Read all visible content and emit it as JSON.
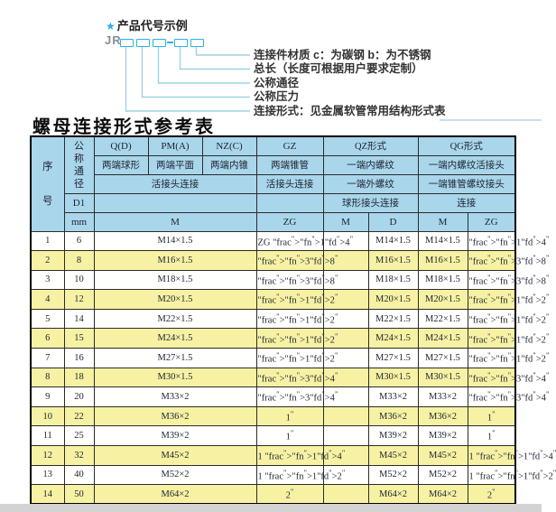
{
  "page": {
    "title": "螺母连接形式参考表"
  },
  "diagram": {
    "star": "★",
    "example_title": "产品代号示例",
    "code_prefix": "JR",
    "labels": [
      "连接件材质  c：为碳钢  b：为不锈钢",
      "总长（长度可根据用户要求定制）",
      "公称通径",
      "公称压力",
      "连接形式：见金属软管常用结构形式表"
    ]
  },
  "table": {
    "header": {
      "seq": "序号",
      "dn": "公称通径",
      "d1": "D1",
      "mm": "mm",
      "q": "Q(D)",
      "pm": "PM(A)",
      "nz": "NZ(C)",
      "gz": "GZ",
      "qz": "QZ形式",
      "qg": "QG形式",
      "q_desc": "两端球形",
      "pm_desc": "两端平面",
      "nz_desc": "两端内锥",
      "gz_desc": "两端锥管",
      "qz_desc1": "一端内螺纹",
      "qg_desc1": "一端内螺纹活接头",
      "live_joint": "活接头连接",
      "gz_joint": "活接头连接",
      "qz_desc2": "一端外螺纹",
      "qg_desc2": "一端锥管螺纹接头",
      "qz_conn": "球形接头连接",
      "qg_conn": "连接",
      "m": "M",
      "zg": "ZG",
      "qz_m": "M",
      "qz_d": "D",
      "qg_m": "M",
      "qg_zg": "ZG"
    },
    "rows": [
      {
        "no": "1",
        "dn": "6",
        "m": "M14×1.5",
        "zg": "ZG 1/4\"",
        "qz_m": "",
        "qz_d": "M14×1.5",
        "qg_m": "M14×1.5",
        "qg_zg": "1/4\""
      },
      {
        "no": "2",
        "dn": "8",
        "m": "M16×1.5",
        "zg": "3/8\"",
        "qz_m": "",
        "qz_d": "M16×1.5",
        "qg_m": "M16×1.5",
        "qg_zg": "3/8\""
      },
      {
        "no": "3",
        "dn": "10",
        "m": "M18×1.5",
        "zg": "3/8\"",
        "qz_m": "",
        "qz_d": "M18×1.5",
        "qg_m": "M18×1.5",
        "qg_zg": "3/8\""
      },
      {
        "no": "4",
        "dn": "12",
        "m": "M20×1.5",
        "zg": "1/2\"",
        "qz_m": "",
        "qz_d": "M20×1.5",
        "qg_m": "M20×1.5",
        "qg_zg": "1/2\""
      },
      {
        "no": "5",
        "dn": "14",
        "m": "M22×1.5",
        "zg": "1/2\"",
        "qz_m": "",
        "qz_d": "M22×1.5",
        "qg_m": "M22×1.5",
        "qg_zg": "1/2\""
      },
      {
        "no": "6",
        "dn": "15",
        "m": "M24×1.5",
        "zg": "1/2\"",
        "qz_m": "",
        "qz_d": "M24×1.5",
        "qg_m": "M24×1.5",
        "qg_zg": "1/2\""
      },
      {
        "no": "7",
        "dn": "16",
        "m": "M27×1.5",
        "zg": "1/2\"",
        "qz_m": "",
        "qz_d": "M27×1.5",
        "qg_m": "M27×1.5",
        "qg_zg": "1/2\""
      },
      {
        "no": "8",
        "dn": "18",
        "m": "M30×1.5",
        "zg": "3/4\"",
        "qz_m": "",
        "qz_d": "M30×1.5",
        "qg_m": "M30×1.5",
        "qg_zg": "3/4\""
      },
      {
        "no": "9",
        "dn": "20",
        "m": "M33×2",
        "zg": "3/4\"",
        "qz_m": "",
        "qz_d": "M33×2",
        "qg_m": "M33×2",
        "qg_zg": "3/4\""
      },
      {
        "no": "10",
        "dn": "22",
        "m": "M36×2",
        "zg": "1\"",
        "qz_m": "",
        "qz_d": "M36×2",
        "qg_m": "M36×2",
        "qg_zg": "1\""
      },
      {
        "no": "11",
        "dn": "25",
        "m": "M39×2",
        "zg": "1\"",
        "qz_m": "",
        "qz_d": "M39×2",
        "qg_m": "M39×2",
        "qg_zg": "1\""
      },
      {
        "no": "12",
        "dn": "32",
        "m": "M45×2",
        "zg": "1 1/4\"",
        "qz_m": "",
        "qz_d": "M45×2",
        "qg_m": "M45×2",
        "qg_zg": "1 1/4\""
      },
      {
        "no": "13",
        "dn": "40",
        "m": "M52×2",
        "zg": "1 1/2\"",
        "qz_m": "",
        "qz_d": "M52×2",
        "qg_m": "M52×2",
        "qg_zg": "1 1/2\""
      },
      {
        "no": "14",
        "dn": "50",
        "m": "M64×2",
        "zg": "2\"",
        "qz_m": "",
        "qz_d": "M64×2",
        "qg_m": "M64×2",
        "qg_zg": "2\""
      }
    ]
  },
  "colors": {
    "header_blue": "#a9d6ea",
    "row_yellow": "#f7f2a3",
    "accent_cyan": "#29b1e6",
    "line_cyan": "#9ed2e2"
  }
}
